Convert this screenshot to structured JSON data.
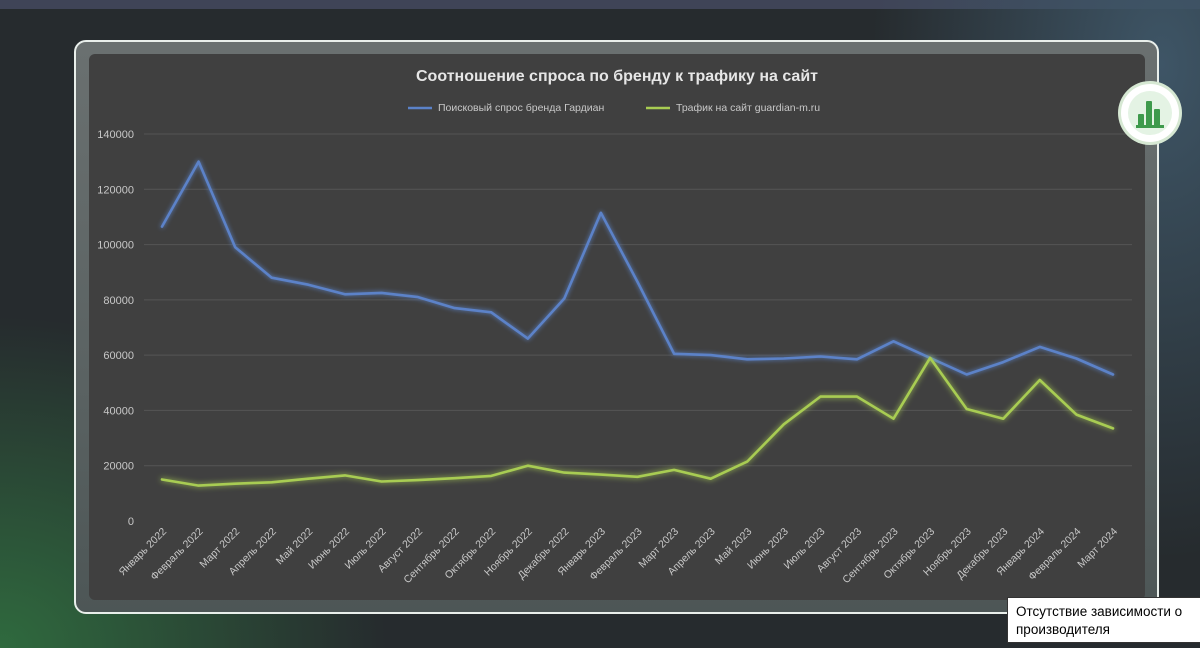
{
  "colors": {
    "series1": "#5b82c8",
    "series2": "#a8cc52",
    "panel": "#404040",
    "grid": "#555555",
    "text": "#c8c8c8",
    "title": "#e6e6e6"
  },
  "badge": {
    "icon": "bar-chart-icon"
  },
  "tooltip": {
    "line1": "Отсутствие зависимости о",
    "line2": "производителя"
  },
  "chart_data": {
    "type": "line",
    "title": "Соотношение спроса по бренду к трафику на сайт",
    "xlabel": "",
    "ylabel": "",
    "ylim": [
      0,
      140000
    ],
    "yticks": [
      0,
      20000,
      40000,
      60000,
      80000,
      100000,
      120000,
      140000
    ],
    "grid": true,
    "legend_position": "top",
    "categories": [
      "Январь 2022",
      "Февраль 2022",
      "Март 2022",
      "Апрель 2022",
      "Май 2022",
      "Июнь 2022",
      "Июль 2022",
      "Август 2022",
      "Сентябрь 2022",
      "Октябрь 2022",
      "Ноябрь 2022",
      "Декабрь 2022",
      "Январь 2023",
      "Февраль 2023",
      "Март 2023",
      "Апрель 2023",
      "Май 2023",
      "Июнь 2023",
      "Июль 2023",
      "Август 2023",
      "Сентябрь 2023",
      "Октябрь 2023",
      "Ноябрь 2023",
      "Декабрь 2023",
      "Январь 2024",
      "Февраль 2024",
      "Март 2024"
    ],
    "series": [
      {
        "name": "Поисковый спрос бренда Гардиан",
        "values": [
          106500,
          130000,
          99000,
          88000,
          85500,
          82000,
          82500,
          81000,
          77000,
          75500,
          66000,
          80500,
          111500,
          86500,
          60500,
          60000,
          58500,
          58800,
          59500,
          58500,
          65000,
          59000,
          53000,
          57500,
          63000,
          58800,
          53000
        ]
      },
      {
        "name": "Трафик на сайт guardian-m.ru",
        "values": [
          15000,
          12800,
          13500,
          14000,
          15300,
          16500,
          14300,
          14800,
          15500,
          16300,
          20000,
          17500,
          16800,
          16000,
          18500,
          15300,
          21500,
          35000,
          45000,
          45000,
          37000,
          59000,
          40500,
          37000,
          51000,
          38500,
          33500
        ]
      }
    ]
  }
}
